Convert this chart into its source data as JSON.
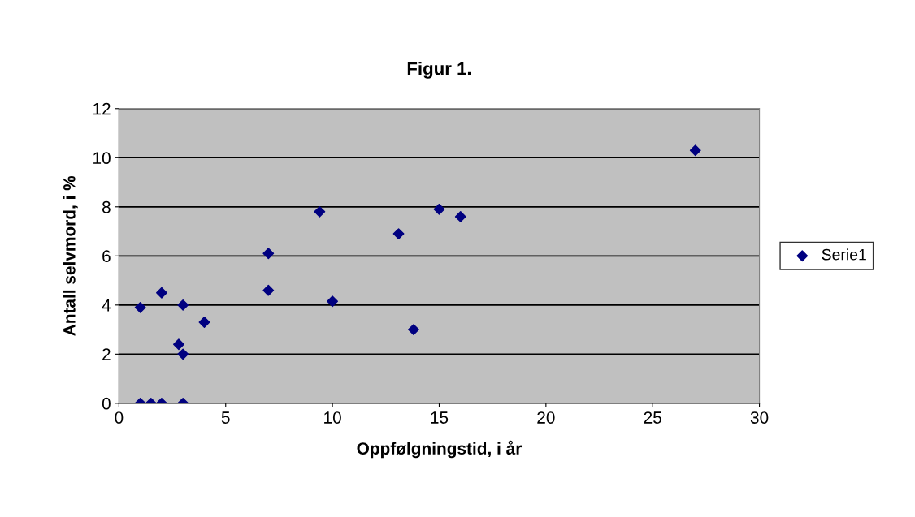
{
  "chart_data": {
    "type": "scatter",
    "title": "Figur 1.",
    "xlabel": "Oppfølgningstid, i år",
    "ylabel": "Antall selvmord, i %",
    "x": [
      1,
      1,
      1.5,
      2,
      2,
      2.8,
      3,
      3,
      3,
      4,
      7,
      7,
      9.4,
      10,
      13.1,
      13.8,
      15,
      16,
      27
    ],
    "series": [
      {
        "name": "Serie1",
        "color": "#000080",
        "values": [
          3.9,
          0,
          0,
          0,
          4.5,
          2.4,
          4.0,
          2.0,
          0,
          3.3,
          6.1,
          4.6,
          7.8,
          4.15,
          6.9,
          3.0,
          7.9,
          7.6,
          10.3
        ]
      }
    ],
    "xlim": [
      0,
      30
    ],
    "xticks": [
      0,
      5,
      10,
      15,
      20,
      25,
      30
    ],
    "ylim": [
      0,
      12
    ],
    "yticks": [
      0,
      2,
      4,
      6,
      8,
      10,
      12
    ],
    "grid": "y",
    "legend": "right",
    "marker": "diamond"
  }
}
